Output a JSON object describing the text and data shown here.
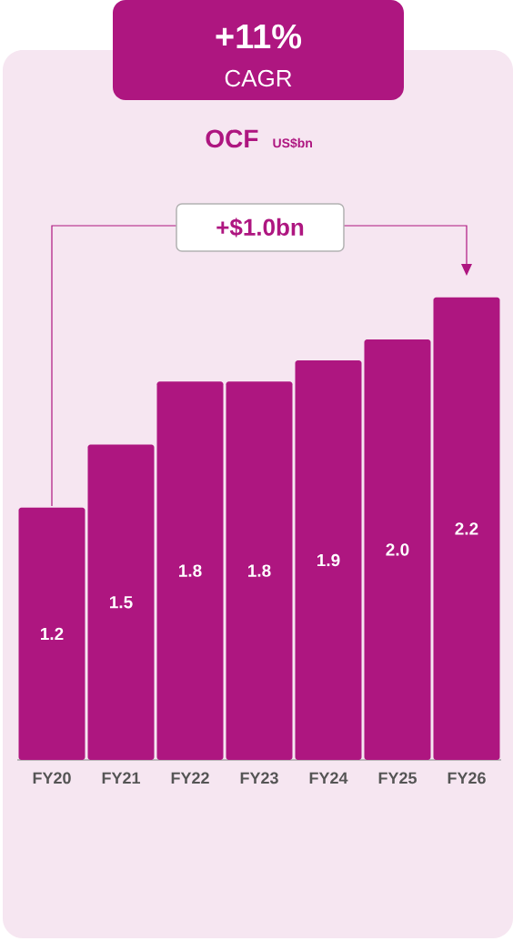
{
  "chart_data": {
    "type": "bar",
    "title": "+11%",
    "subtitle": "CAGR",
    "categories": [
      "FY20",
      "FY21",
      "FY22",
      "FY23",
      "FY24",
      "FY25",
      "FY26"
    ],
    "values": [
      1.2,
      1.5,
      1.8,
      1.8,
      1.9,
      2.0,
      2.2
    ],
    "color": "#ae1680",
    "value_labels": [
      "1.2",
      "1.5",
      "1.8",
      "1.8",
      "1.9",
      "2.0",
      "2.2"
    ],
    "annotations": [
      "OCF",
      "US$bn",
      "+$1.0bn"
    ]
  }
}
